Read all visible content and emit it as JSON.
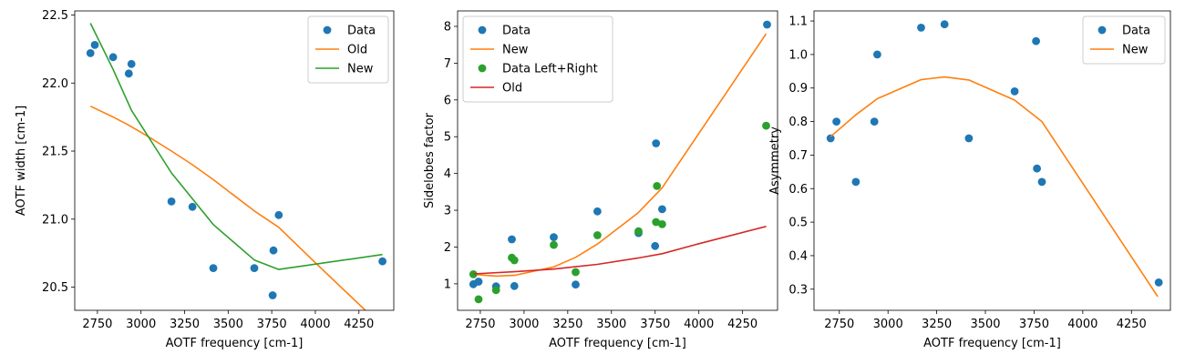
{
  "chart_data": [
    {
      "type": "scatter",
      "xlabel": "AOTF frequency [cm-1]",
      "ylabel": "AOTF width [cm-1]",
      "xlim": [
        2620,
        4450
      ],
      "ylim": [
        20.33,
        22.53
      ],
      "xticks": [
        2750,
        3000,
        3250,
        3500,
        3750,
        4000,
        4250
      ],
      "yticks": [
        20.5,
        21.0,
        21.5,
        22.0,
        22.5
      ],
      "ytick_decimals": 1,
      "legend": "top-right",
      "series": [
        {
          "name": "Data",
          "kind": "scatter",
          "color": "#1f77b4",
          "x": [
            2710,
            2735,
            2840,
            2930,
            2945,
            3175,
            3295,
            3415,
            3650,
            3760,
            3790,
            3755,
            4385
          ],
          "y": [
            22.22,
            22.28,
            22.19,
            22.07,
            22.14,
            21.13,
            21.09,
            20.64,
            20.64,
            20.77,
            21.03,
            20.44,
            20.69
          ]
        },
        {
          "name": "Old",
          "kind": "line",
          "color": "#ff7f0e",
          "x": [
            2710,
            2840,
            2930,
            3050,
            3175,
            3295,
            3415,
            3650,
            3790,
            4000,
            4385
          ],
          "y": [
            21.83,
            21.75,
            21.69,
            21.6,
            21.5,
            21.4,
            21.29,
            21.06,
            20.94,
            20.68,
            20.21
          ]
        },
        {
          "name": "New",
          "kind": "line",
          "color": "#2ca02c",
          "x": [
            2710,
            2840,
            2945,
            3175,
            3415,
            3650,
            3790,
            4385
          ],
          "y": [
            22.44,
            22.1,
            21.8,
            21.34,
            20.96,
            20.7,
            20.63,
            20.74
          ]
        }
      ]
    },
    {
      "type": "scatter",
      "xlabel": "AOTF frequency [cm-1]",
      "ylabel": "Sidelobes factor",
      "xlim": [
        2620,
        4450
      ],
      "ylim": [
        0.28,
        8.42
      ],
      "xticks": [
        2750,
        3000,
        3250,
        3500,
        3750,
        4000,
        4250
      ],
      "yticks": [
        1,
        2,
        3,
        4,
        5,
        6,
        7,
        8
      ],
      "ytick_decimals": 0,
      "legend": "top-left",
      "series": [
        {
          "name": "Data",
          "kind": "scatter",
          "color": "#1f77b4",
          "x": [
            2710,
            2740,
            2840,
            2930,
            2945,
            3170,
            3295,
            3420,
            3655,
            3755,
            3790,
            3750,
            4390
          ],
          "y": [
            0.99,
            1.06,
            0.93,
            2.21,
            0.94,
            2.27,
            0.98,
            2.97,
            2.38,
            4.82,
            3.03,
            2.03,
            8.05
          ]
        },
        {
          "name": "New",
          "kind": "line",
          "color": "#ff7f0e",
          "x": [
            2710,
            2840,
            2945,
            3170,
            3295,
            3420,
            3650,
            3790,
            4385
          ],
          "y": [
            1.26,
            1.21,
            1.23,
            1.46,
            1.72,
            2.08,
            2.92,
            3.61,
            7.8
          ]
        },
        {
          "name": "Data Left+Right",
          "kind": "scatter",
          "color": "#2ca02c",
          "x": [
            2710,
            2740,
            2840,
            2930,
            2945,
            3170,
            3295,
            3420,
            3655,
            3755,
            3760,
            3790,
            4385
          ],
          "y": [
            1.26,
            0.58,
            0.83,
            1.71,
            1.64,
            2.06,
            1.32,
            2.32,
            2.43,
            2.68,
            3.66,
            2.62,
            5.3
          ]
        },
        {
          "name": "Old",
          "kind": "line",
          "color": "#d62728",
          "x": [
            2710,
            2945,
            3170,
            3420,
            3650,
            3790,
            4000,
            4385
          ],
          "y": [
            1.27,
            1.33,
            1.4,
            1.53,
            1.7,
            1.82,
            2.09,
            2.56
          ]
        }
      ]
    },
    {
      "type": "scatter",
      "xlabel": "AOTF frequency [cm-1]",
      "ylabel": "Asymmetry",
      "xlim": [
        2620,
        4450
      ],
      "ylim": [
        0.237,
        1.13
      ],
      "xticks": [
        2750,
        3000,
        3250,
        3500,
        3750,
        4000,
        4250
      ],
      "yticks": [
        0.3,
        0.4,
        0.5,
        0.6,
        0.7,
        0.8,
        0.9,
        1.0,
        1.1
      ],
      "ytick_decimals": 1,
      "legend": "top-right",
      "series": [
        {
          "name": "Data",
          "kind": "scatter",
          "color": "#1f77b4",
          "x": [
            2705,
            2735,
            2835,
            2930,
            2945,
            3170,
            3290,
            3415,
            3650,
            3760,
            3765,
            3790,
            4390
          ],
          "y": [
            0.75,
            0.8,
            0.62,
            0.8,
            1.0,
            1.08,
            1.09,
            0.75,
            0.89,
            1.04,
            0.66,
            0.62,
            0.32
          ]
        },
        {
          "name": "New",
          "kind": "line",
          "color": "#ff7f0e",
          "x": [
            2705,
            2835,
            2945,
            3170,
            3290,
            3415,
            3650,
            3790,
            4385
          ],
          "y": [
            0.755,
            0.82,
            0.868,
            0.925,
            0.933,
            0.924,
            0.864,
            0.8,
            0.278
          ]
        }
      ]
    }
  ]
}
